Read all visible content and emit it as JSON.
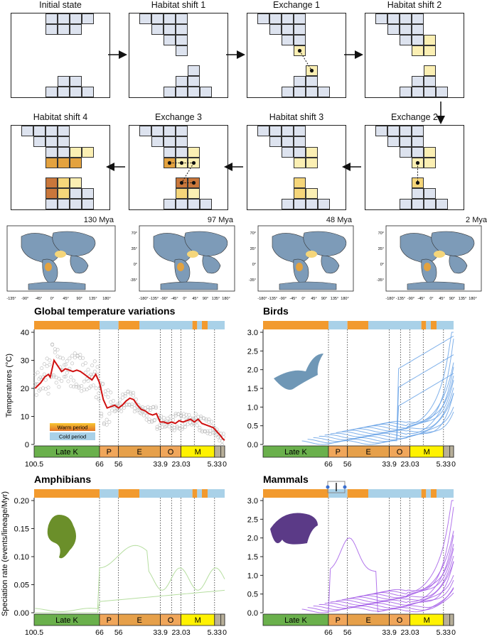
{
  "panels": [
    {
      "title": "Initial state"
    },
    {
      "title": "Habitat shift 1"
    },
    {
      "title": "Exchange 1"
    },
    {
      "title": "Habitat shift 2"
    },
    {
      "title": "Exchange 2"
    },
    {
      "title": "Habitat shift 3"
    },
    {
      "title": "Exchange 3"
    },
    {
      "title": "Habitat shift 4"
    }
  ],
  "maps": [
    {
      "label": "130 Mya"
    },
    {
      "label": "97 Mya"
    },
    {
      "label": "48 Mya"
    },
    {
      "label": "2 Mya"
    }
  ],
  "map_axis": {
    "x_ticks": [
      "-135°",
      "-90°",
      "-45°",
      "0°",
      "45°",
      "90°",
      "135°",
      "180°"
    ],
    "x_ticks_full": [
      "-180°",
      "-135°",
      "-90°",
      "-45°",
      "0°",
      "45°",
      "90°",
      "135°",
      "180°"
    ],
    "y_ticks": [
      "70°",
      "35°",
      "0°",
      "-35°"
    ]
  },
  "colors": {
    "cell_blue": "#dde3ef",
    "cell_pale": "#fbefb3",
    "cell_yellow": "#f5d67a",
    "cell_orange": "#e3a23f",
    "cell_dark": "#c9773b",
    "warm": "#f29a2e",
    "cold": "#a9d1e8",
    "temp_line": "#d01010",
    "birds": "#6aa3e6",
    "amphibians": "#a9d88f",
    "mammals": "#a45ee8",
    "late_k": "#6ab04c",
    "paleocene": "#f0a65a",
    "eocene": "#e6a04a",
    "oligocene": "#f0a65a",
    "miocene": "#fff200",
    "recent": "#b8b09a",
    "ocean": "#7d9bb8"
  },
  "timescale": {
    "epochs": [
      "Late K",
      "P",
      "E",
      "O",
      "M"
    ],
    "boundary_labels": [
      "100.5",
      "66",
      "56",
      "33.9",
      "23.03",
      "5.33",
      "0"
    ]
  },
  "legend": {
    "warm": "Warm period",
    "cold": "Cold period"
  },
  "chart_data": [
    {
      "type": "line",
      "title": "Global temperature variations",
      "ylabel": "Temperatures (°C)",
      "xlim": [
        100.5,
        0
      ],
      "ylim": [
        0,
        40
      ],
      "yticks": [
        "0",
        "10",
        "20",
        "30",
        "40"
      ],
      "climate_periods": [
        {
          "from": 100.5,
          "to": 66,
          "kind": "warm"
        },
        {
          "from": 66,
          "to": 56,
          "kind": "cold"
        },
        {
          "from": 56,
          "to": 45,
          "kind": "warm"
        },
        {
          "from": 45,
          "to": 17,
          "kind": "cold"
        },
        {
          "from": 17,
          "to": 14.5,
          "kind": "warm"
        },
        {
          "from": 14.5,
          "to": 12,
          "kind": "cold"
        },
        {
          "from": 12,
          "to": 9,
          "kind": "warm"
        },
        {
          "from": 9,
          "to": 0,
          "kind": "cold"
        }
      ],
      "series": [
        {
          "values_x": [
            100,
            97,
            95,
            93,
            92,
            90,
            88,
            86,
            84,
            82,
            80,
            78,
            76,
            74,
            72,
            70,
            68,
            66,
            64,
            62,
            60,
            58,
            56,
            54,
            52,
            50,
            48,
            46,
            44,
            42,
            40,
            38,
            36,
            34,
            32,
            30,
            28,
            26,
            24,
            22,
            20,
            18,
            16,
            14,
            12,
            10,
            8,
            6,
            4,
            2,
            1,
            0
          ],
          "values_y": [
            20,
            22,
            24,
            25,
            24,
            30,
            28,
            26,
            27,
            26.5,
            26,
            26.5,
            26,
            25,
            24,
            23,
            25,
            22,
            16,
            13,
            13.5,
            14,
            13,
            14,
            15.5,
            16.5,
            16,
            14,
            12.5,
            12,
            11,
            10.5,
            11,
            8,
            8,
            7.5,
            8,
            7.5,
            8.5,
            8,
            8.5,
            9,
            8,
            9,
            7.5,
            7,
            6.5,
            6,
            4.5,
            3,
            2,
            1.5
          ]
        }
      ]
    },
    {
      "type": "line",
      "title": "Birds",
      "xlim": [
        100.5,
        0
      ],
      "ylim": [
        0,
        3.0
      ],
      "yticks": [
        "0.0",
        "0.5",
        "1.0",
        "1.5",
        "2.0",
        "2.5",
        "3.0"
      ]
    },
    {
      "type": "line",
      "title": "Amphibians",
      "ylabel": "Speciation rate (events/lineage/Myr)",
      "xlim": [
        100.5,
        0
      ],
      "ylim": [
        0,
        0.2
      ],
      "yticks": [
        "0.00",
        "0.05",
        "0.10",
        "0.15",
        "0.20"
      ]
    },
    {
      "type": "line",
      "title": "Mammals",
      "xlim": [
        100.5,
        0
      ],
      "ylim": [
        0,
        3.0
      ],
      "yticks": [
        "0.0",
        "0.5",
        "1.0",
        "1.5",
        "2.0",
        "2.5",
        "3.0"
      ]
    }
  ]
}
